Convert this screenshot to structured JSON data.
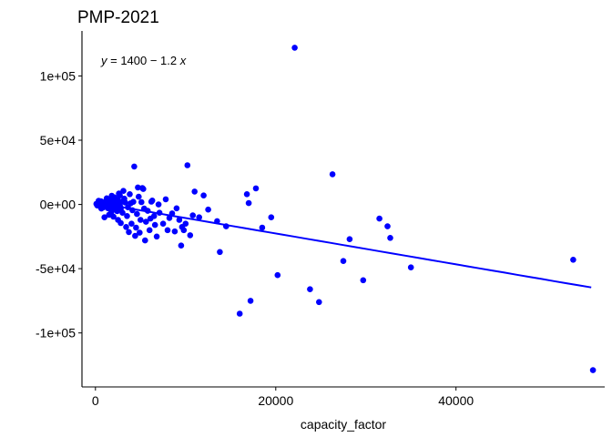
{
  "chart_data": {
    "type": "scatter",
    "title": "PMP-2021",
    "xlabel": "capacity_factor",
    "ylabel": "",
    "xlim": [
      -1500,
      56500
    ],
    "ylim": [
      -142000,
      135000
    ],
    "x_ticks": [
      0,
      20000,
      40000
    ],
    "x_tick_labels": [
      "0",
      "20000",
      "40000"
    ],
    "y_ticks": [
      100000,
      50000,
      0,
      -50000,
      -100000
    ],
    "y_tick_labels": [
      "1e+05",
      "5e+04",
      "0e+00",
      "-5e+04",
      "-1e+05"
    ],
    "grid": false,
    "legend": "none",
    "point_color": "#0000FF",
    "line_color": "#0000FF",
    "annotation": {
      "text": "y = 1400 − 1.2 x",
      "y_var": "y",
      "equals": " = 1400 − 1.2 ",
      "x_var": "x"
    },
    "regression": {
      "intercept": 1400,
      "slope": -1.2,
      "x_range": [
        0,
        55000
      ]
    },
    "series": [
      {
        "points": [
          [
            100,
            500
          ],
          [
            200,
            -800
          ],
          [
            300,
            1200
          ],
          [
            400,
            300
          ],
          [
            500,
            -1500
          ],
          [
            600,
            2500
          ],
          [
            700,
            -200
          ],
          [
            800,
            800
          ],
          [
            900,
            -2200
          ],
          [
            1000,
            1800
          ],
          [
            1100,
            -600
          ],
          [
            1200,
            3200
          ],
          [
            1300,
            1000
          ],
          [
            1400,
            -3000
          ],
          [
            1500,
            200
          ],
          [
            1600,
            4000
          ],
          [
            1700,
            -1200
          ],
          [
            1800,
            2100
          ],
          [
            1900,
            -4200
          ],
          [
            2000,
            600
          ],
          [
            2100,
            5500
          ],
          [
            2200,
            -2600
          ],
          [
            2300,
            1400
          ],
          [
            2400,
            -5200
          ],
          [
            2500,
            3300
          ],
          [
            2600,
            -800
          ],
          [
            2700,
            7000
          ],
          [
            2800,
            -3500
          ],
          [
            2900,
            2000
          ],
          [
            3000,
            -6500
          ],
          [
            1000,
            -10000
          ],
          [
            1500,
            -8000
          ],
          [
            2500,
            -12000
          ],
          [
            3200,
            4500
          ],
          [
            3500,
            -9000
          ],
          [
            3800,
            8000
          ],
          [
            4000,
            -15000
          ],
          [
            4200,
            2000
          ],
          [
            4500,
            -18000
          ],
          [
            4800,
            6000
          ],
          [
            5000,
            -12000
          ],
          [
            5300,
            12000
          ],
          [
            5500,
            -28000
          ],
          [
            5800,
            -5000
          ],
          [
            6000,
            -20000
          ],
          [
            6300,
            3000
          ],
          [
            6500,
            -9000
          ],
          [
            6800,
            -25000
          ],
          [
            7000,
            0
          ],
          [
            7500,
            -15000
          ],
          [
            7800,
            4000
          ],
          [
            8000,
            -20000
          ],
          [
            8500,
            -7000
          ],
          [
            9000,
            -3000
          ],
          [
            9300,
            -12000
          ],
          [
            9500,
            -32000
          ],
          [
            9800,
            -20000
          ],
          [
            10000,
            -15000
          ],
          [
            4300,
            29500
          ],
          [
            10200,
            30500
          ],
          [
            10500,
            -24000
          ],
          [
            11000,
            10000
          ],
          [
            11500,
            -10000
          ],
          [
            12000,
            7000
          ],
          [
            12500,
            -4000
          ],
          [
            13500,
            -13000
          ],
          [
            13800,
            -37000
          ],
          [
            14500,
            -17000
          ],
          [
            16000,
            -85000
          ],
          [
            16800,
            8000
          ],
          [
            17000,
            1000
          ],
          [
            17200,
            -75000
          ],
          [
            17800,
            12500
          ],
          [
            18500,
            -18000
          ],
          [
            19500,
            -10000
          ],
          [
            20200,
            -55000
          ],
          [
            22100,
            122000
          ],
          [
            23800,
            -66000
          ],
          [
            24800,
            -76000
          ],
          [
            26300,
            23500
          ],
          [
            27500,
            -44000
          ],
          [
            28200,
            -27000
          ],
          [
            29700,
            -59000
          ],
          [
            31500,
            -11000
          ],
          [
            32400,
            -17000
          ],
          [
            32700,
            -26000
          ],
          [
            35000,
            -49000
          ],
          [
            53000,
            -43000
          ],
          [
            55200,
            -129000
          ],
          [
            350,
            2800
          ],
          [
            650,
            -3200
          ],
          [
            1250,
            4800
          ],
          [
            1750,
            -6200
          ],
          [
            2250,
            3900
          ],
          [
            2750,
            -1800
          ],
          [
            3300,
            1500
          ],
          [
            3600,
            -2200
          ],
          [
            3900,
            900
          ],
          [
            4100,
            -4500
          ],
          [
            4600,
            -7500
          ],
          [
            5100,
            1800
          ],
          [
            5600,
            -13500
          ],
          [
            6100,
            -11000
          ],
          [
            6600,
            -16000
          ],
          [
            7100,
            -6500
          ],
          [
            8200,
            -10500
          ],
          [
            8800,
            -21000
          ],
          [
            2000,
            -9500
          ],
          [
            2800,
            -14500
          ],
          [
            3400,
            -17500
          ],
          [
            3700,
            -21500
          ],
          [
            4400,
            -24500
          ],
          [
            4900,
            -22000
          ],
          [
            5400,
            -3200
          ],
          [
            9600,
            -17500
          ],
          [
            10800,
            -8500
          ],
          [
            1800,
            6800
          ],
          [
            2600,
            8500
          ],
          [
            3100,
            10500
          ],
          [
            4700,
            13200
          ],
          [
            5200,
            12800
          ],
          [
            6200,
            2200
          ]
        ]
      }
    ]
  }
}
